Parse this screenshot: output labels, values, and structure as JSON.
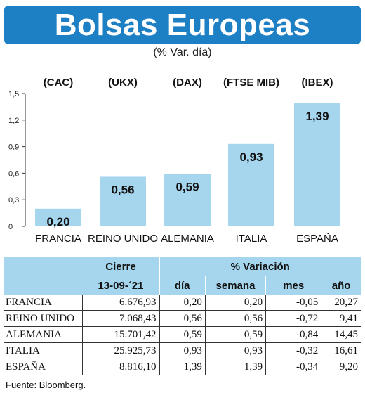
{
  "title": "Bolsas Europeas",
  "subtitle": "(% Var. día)",
  "colors": {
    "title_bg": "#1d7fc4",
    "bar": "#a6d6ee",
    "table_header": "#a6d6ee"
  },
  "chart_data": {
    "type": "bar",
    "categories": [
      "FRANCIA",
      "REINO UNIDO",
      "ALEMANIA",
      "ITALIA",
      "ESPAÑA"
    ],
    "index_labels": [
      "(CAC)",
      "(UKX)",
      "(DAX)",
      "(FTSE MIB)",
      "(IBEX)"
    ],
    "values": [
      0.2,
      0.56,
      0.59,
      0.93,
      1.39
    ],
    "value_labels": [
      "0,20",
      "0,56",
      "0,59",
      "0,93",
      "1,39"
    ],
    "yticks": [
      "0",
      "0,3",
      "0,6",
      "0,9",
      "1,2",
      "1,5"
    ],
    "ylim": [
      0,
      1.5
    ],
    "grid": false
  },
  "table": {
    "header_cierre": "Cierre",
    "header_variacion": "% Variación",
    "header_date": "13-09-´21",
    "sub_headers": [
      "día",
      "semana",
      "mes",
      "año"
    ],
    "rows": [
      {
        "name": "FRANCIA",
        "cierre": "6.676,93",
        "dia": "0,20",
        "semana": "0,20",
        "mes": "-0,05",
        "ano": "20,27"
      },
      {
        "name": "REINO UNIDO",
        "cierre": "7.068,43",
        "dia": "0,56",
        "semana": "0,56",
        "mes": "-0,72",
        "ano": "9,41"
      },
      {
        "name": "ALEMANIA",
        "cierre": "15.701,42",
        "dia": "0,59",
        "semana": "0,59",
        "mes": "-0,84",
        "ano": "14,45"
      },
      {
        "name": "ITALIA",
        "cierre": "25.925,73",
        "dia": "0,93",
        "semana": "0,93",
        "mes": "-0,32",
        "ano": "16,61"
      },
      {
        "name": "ESPAÑA",
        "cierre": "8.816,10",
        "dia": "1,39",
        "semana": "1,39",
        "mes": "-0,34",
        "ano": "9,20"
      }
    ]
  },
  "source": "Fuente: Bloomberg."
}
